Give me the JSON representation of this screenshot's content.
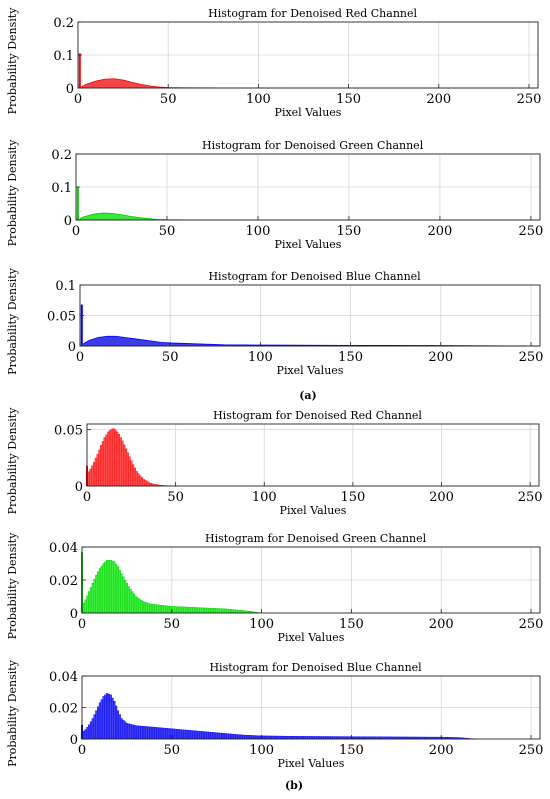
{
  "figure": {
    "caption_a": "(a)",
    "caption_b": "(b)"
  },
  "chart_data": [
    {
      "id": "a-red",
      "type": "area",
      "title": "Histogram for Denoised Red Channel",
      "xlabel": "Pixel Values",
      "ylabel": "Probability Density",
      "xlim": [
        0,
        255
      ],
      "ylim": [
        0,
        0.2
      ],
      "xticks": [
        0,
        50,
        100,
        150,
        200,
        250
      ],
      "yticks": [
        0,
        0.1,
        0.2
      ],
      "xtick_labels": [
        "0",
        "50",
        "100",
        "150",
        "200",
        "250"
      ],
      "ytick_labels": [
        "0",
        "0.1",
        "0.2"
      ],
      "grid": true,
      "color": "#ff0000",
      "fill": "#f04848",
      "spike": {
        "x": 1,
        "y": 0.105
      },
      "series": [
        {
          "x": [
            2,
            5,
            10,
            15,
            20,
            25,
            30,
            35,
            40,
            45,
            50,
            60,
            80,
            120,
            255
          ],
          "y": [
            0.004,
            0.012,
            0.021,
            0.027,
            0.028,
            0.024,
            0.017,
            0.011,
            0.006,
            0.003,
            0.0015,
            0.0005,
            0.0002,
            0.0001,
            0
          ]
        }
      ]
    },
    {
      "id": "a-green",
      "type": "area",
      "title": "Histogram for Denoised Green Channel",
      "xlabel": "Pixel Values",
      "ylabel": "Probability Density",
      "xlim": [
        0,
        255
      ],
      "ylim": [
        0,
        0.2
      ],
      "xticks": [
        0,
        50,
        100,
        150,
        200,
        250
      ],
      "yticks": [
        0,
        0.1,
        0.2
      ],
      "xtick_labels": [
        "0",
        "50",
        "100",
        "150",
        "200",
        "250"
      ],
      "ytick_labels": [
        "0",
        "0.1",
        "0.2"
      ],
      "grid": true,
      "color": "#00cc00",
      "fill": "#3ae83a",
      "spike": {
        "x": 1,
        "y": 0.1
      },
      "series": [
        {
          "x": [
            2,
            5,
            10,
            15,
            20,
            25,
            30,
            35,
            40,
            45,
            50,
            60,
            80,
            120,
            255
          ],
          "y": [
            0.004,
            0.011,
            0.018,
            0.021,
            0.02,
            0.016,
            0.011,
            0.007,
            0.004,
            0.002,
            0.001,
            0.0005,
            0.0002,
            0.0001,
            0
          ]
        }
      ]
    },
    {
      "id": "a-blue",
      "type": "area",
      "title": "Histogram for Denoised Blue Channel",
      "xlabel": "Pixel Values",
      "ylabel": "Probability Density",
      "xlim": [
        0,
        255
      ],
      "ylim": [
        0,
        0.1
      ],
      "xticks": [
        0,
        50,
        100,
        150,
        200,
        250
      ],
      "yticks": [
        0,
        0.05,
        0.1
      ],
      "xtick_labels": [
        "0",
        "50",
        "100",
        "150",
        "200",
        "250"
      ],
      "ytick_labels": [
        "0",
        "0.05",
        "0.1"
      ],
      "grid": true,
      "color": "#0000ff",
      "fill": "#3c3ce8",
      "spike": {
        "x": 1,
        "y": 0.068
      },
      "series": [
        {
          "x": [
            2,
            5,
            10,
            15,
            20,
            25,
            30,
            35,
            40,
            45,
            50,
            60,
            70,
            80,
            100,
            150,
            200,
            255
          ],
          "y": [
            0.004,
            0.009,
            0.014,
            0.016,
            0.016,
            0.014,
            0.012,
            0.01,
            0.008,
            0.006,
            0.005,
            0.004,
            0.003,
            0.002,
            0.0015,
            0.001,
            0.0008,
            0
          ]
        }
      ]
    },
    {
      "id": "b-red",
      "type": "bar",
      "title": "Histogram for Denoised Red Channel",
      "xlabel": "Pixel Values",
      "ylabel": "Probability Density",
      "xlim": [
        0,
        255
      ],
      "ylim": [
        0,
        0.055
      ],
      "xticks": [
        0,
        50,
        100,
        150,
        200,
        250
      ],
      "yticks": [
        0,
        0.05
      ],
      "xtick_labels": [
        "0",
        "50",
        "100",
        "150",
        "200",
        "250"
      ],
      "ytick_labels": [
        "0",
        "0.05"
      ],
      "grid": true,
      "color": "#ff0000",
      "fill": "#ff5050",
      "spike": {
        "x": 0,
        "y": 0.018
      },
      "series": [
        {
          "x": [
            0,
            2,
            4,
            6,
            8,
            10,
            12,
            14,
            15,
            16,
            18,
            20,
            22,
            24,
            26,
            28,
            30,
            32,
            35,
            38,
            42,
            46,
            50,
            255
          ],
          "y": [
            0.01,
            0.015,
            0.021,
            0.028,
            0.036,
            0.043,
            0.048,
            0.0505,
            0.051,
            0.05,
            0.046,
            0.04,
            0.033,
            0.026,
            0.019,
            0.013,
            0.009,
            0.006,
            0.003,
            0.0015,
            0.0006,
            0.0002,
            0,
            0
          ]
        }
      ]
    },
    {
      "id": "b-green",
      "type": "bar",
      "title": "Histogram for Denoised Green Channel",
      "xlabel": "Pixel Values",
      "ylabel": "Probability Density",
      "xlim": [
        0,
        255
      ],
      "ylim": [
        0,
        0.04
      ],
      "xticks": [
        0,
        50,
        100,
        150,
        200,
        250
      ],
      "yticks": [
        0,
        0.02,
        0.04
      ],
      "xtick_labels": [
        "0",
        "50",
        "100",
        "150",
        "200",
        "250"
      ],
      "ytick_labels": [
        "0",
        "0.02",
        "0.04"
      ],
      "grid": true,
      "color": "#00cc00",
      "fill": "#40f040",
      "spike": {
        "x": 0,
        "y": 0.037
      },
      "series": [
        {
          "x": [
            0,
            2,
            4,
            6,
            8,
            10,
            12,
            14,
            16,
            18,
            20,
            22,
            24,
            26,
            28,
            30,
            34,
            38,
            42,
            46,
            50,
            60,
            70,
            80,
            90,
            95,
            100,
            255
          ],
          "y": [
            0.004,
            0.008,
            0.013,
            0.018,
            0.023,
            0.027,
            0.03,
            0.032,
            0.032,
            0.031,
            0.028,
            0.024,
            0.02,
            0.016,
            0.013,
            0.01,
            0.007,
            0.0055,
            0.005,
            0.0045,
            0.004,
            0.0035,
            0.003,
            0.0025,
            0.0015,
            0.0008,
            0,
            0
          ]
        }
      ]
    },
    {
      "id": "b-blue",
      "type": "bar",
      "title": "Histogram for Denoised Blue Channel",
      "xlabel": "Pixel Values",
      "ylabel": "Probability Density",
      "xlim": [
        0,
        255
      ],
      "ylim": [
        0,
        0.04
      ],
      "xticks": [
        0,
        50,
        100,
        150,
        200,
        250
      ],
      "yticks": [
        0,
        0.02,
        0.04
      ],
      "xtick_labels": [
        "0",
        "50",
        "100",
        "150",
        "200",
        "250"
      ],
      "ytick_labels": [
        "0",
        "0.02",
        "0.04"
      ],
      "grid": true,
      "color": "#0000ff",
      "fill": "#4040f0",
      "spike": {
        "x": 0,
        "y": 0.009
      },
      "series": [
        {
          "x": [
            0,
            2,
            4,
            6,
            8,
            10,
            12,
            14,
            16,
            18,
            20,
            22,
            25,
            30,
            40,
            50,
            60,
            70,
            80,
            90,
            100,
            120,
            150,
            180,
            200,
            210,
            215,
            220,
            255
          ],
          "y": [
            0.004,
            0.006,
            0.009,
            0.013,
            0.018,
            0.023,
            0.027,
            0.029,
            0.028,
            0.024,
            0.018,
            0.013,
            0.01,
            0.0085,
            0.0075,
            0.0065,
            0.0055,
            0.0045,
            0.0035,
            0.0025,
            0.002,
            0.0017,
            0.0015,
            0.0013,
            0.0012,
            0.0009,
            0.0004,
            0,
            0
          ]
        }
      ]
    }
  ]
}
